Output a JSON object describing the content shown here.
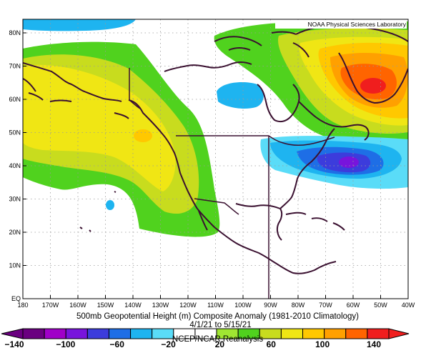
{
  "credit": "NOAA Physical Sciences Laboratory",
  "title": "500mb Geopotential Height (m) Composite Anomaly (1981-2010 Climatology)",
  "dates": "4/1/21  to 5/15/21",
  "source": "NCEP/NCAR Reanalysis",
  "lat_labels": [
    "80N",
    "70N",
    "60N",
    "50N",
    "40N",
    "30N",
    "20N",
    "10N",
    "EQ"
  ],
  "lon_labels": [
    "180",
    "170W",
    "160W",
    "150W",
    "140W",
    "130W",
    "120W",
    "110W",
    "100W",
    "90W",
    "80W",
    "70W",
    "60W",
    "50W",
    "40W"
  ],
  "colorbar": {
    "labels": [
      "-140",
      "-100",
      "-60",
      "-20",
      "20",
      "60",
      "100",
      "140"
    ],
    "colors": [
      "#6a0080",
      "#a000c8",
      "#7814dc",
      "#3c3cdc",
      "#1e6ee6",
      "#1eb4f0",
      "#5adcf8",
      "#ffffff",
      "#ffffff",
      "#a0e632",
      "#50d21e",
      "#c8dc1e",
      "#f0e614",
      "#ffc800",
      "#ffa000",
      "#ff6400",
      "#f01e1e"
    ]
  },
  "chart_data": {
    "type": "heatmap",
    "variable": "500mb Geopotential Height (m) Composite Anomaly",
    "units": "m",
    "period": "4/1/21 to 5/15/21",
    "lon_range": [
      "180",
      "40W"
    ],
    "lat_range": [
      "EQ",
      "85N"
    ],
    "contour_levels": [
      -140,
      -120,
      -100,
      -80,
      -60,
      -40,
      -20,
      20,
      40,
      60,
      80,
      100,
      120,
      140
    ],
    "features": [
      {
        "name": "positive anomaly center",
        "near": "50N 140W",
        "approx_value": 80
      },
      {
        "name": "positive anomaly center",
        "near": "65N 50W",
        "approx_value": 140
      },
      {
        "name": "negative anomaly center",
        "near": "42N 60W",
        "approx_value": -100
      },
      {
        "name": "negative anomaly",
        "near": "62N 95W",
        "approx_value": -40
      },
      {
        "name": "negative anomaly",
        "near": "32N 150W",
        "approx_value": -40
      }
    ]
  }
}
